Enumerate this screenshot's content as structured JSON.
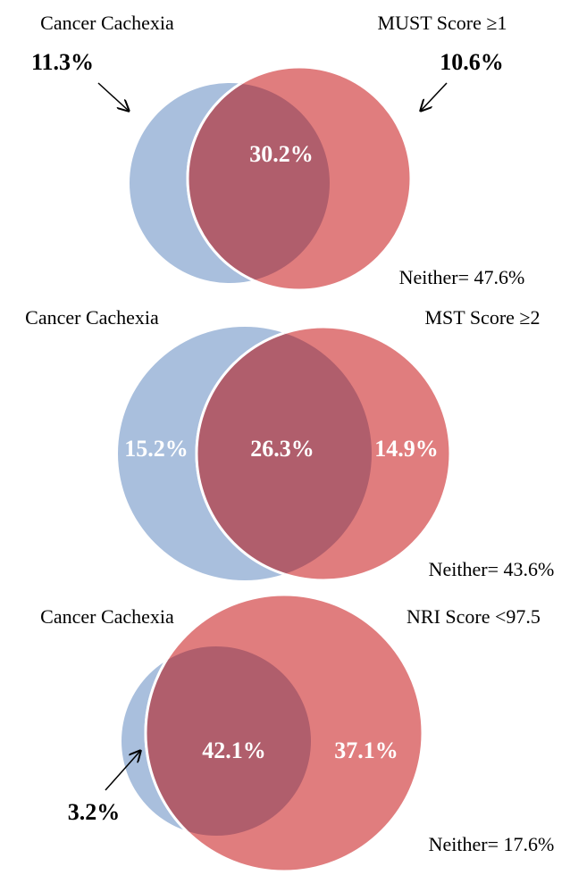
{
  "diagrams": [
    {
      "left_label": "Cancer Cachexia",
      "right_label": "MUST Score ≥1",
      "left_only": "11.3%",
      "right_only": "10.6%",
      "overlap": "30.2%",
      "neither": "Neither= 47.6%"
    },
    {
      "left_label": "Cancer Cachexia",
      "right_label": "MST Score ≥2",
      "left_only": "15.2%",
      "right_only": "14.9%",
      "overlap": "26.3%",
      "neither": "Neither= 43.6%"
    },
    {
      "left_label": "Cancer Cachexia",
      "right_label": "NRI Score <97.5",
      "left_only": "3.2%",
      "right_only": "37.1%",
      "overlap": "42.1%",
      "neither": "Neither= 17.6%"
    }
  ]
}
